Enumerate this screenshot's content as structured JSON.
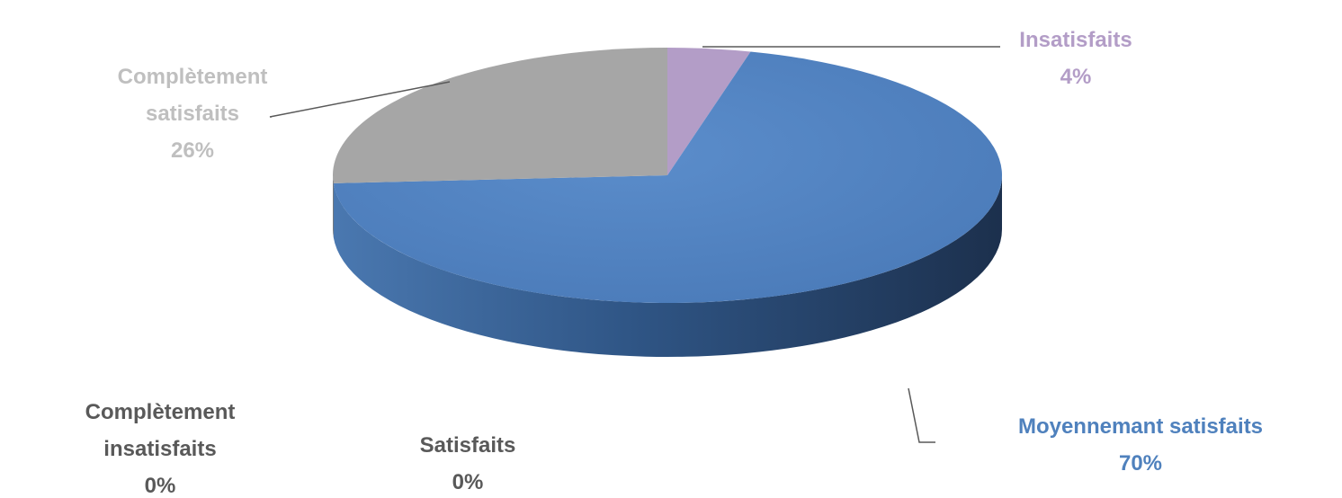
{
  "chart_data": {
    "type": "pie",
    "style": "3d",
    "slices": [
      {
        "label": "Insatisfaits",
        "value": 4,
        "value_label": "4%",
        "color": "#b39dc7"
      },
      {
        "label": "Moyennemant satisfaits",
        "value": 70,
        "value_label": "70%",
        "color": "#4f81bd"
      },
      {
        "label": "Satisfaits",
        "value": 0,
        "value_label": "0%",
        "color": "#9bbb59"
      },
      {
        "label": "Complètement insatisfaits",
        "value": 0,
        "value_label": "0%",
        "color": "#8064a2"
      },
      {
        "label": "Complètement satisfaits",
        "value": 26,
        "value_label": "26%",
        "color": "#a6a6a6"
      }
    ],
    "label_colors": {
      "Insatisfaits": "#b39dc7",
      "Moyennemant satisfaits": "#4f81bd",
      "Satisfaits": "#595959",
      "Complètement insatisfaits": "#595959",
      "Complètement satisfaits": "#bfbfbf"
    }
  }
}
